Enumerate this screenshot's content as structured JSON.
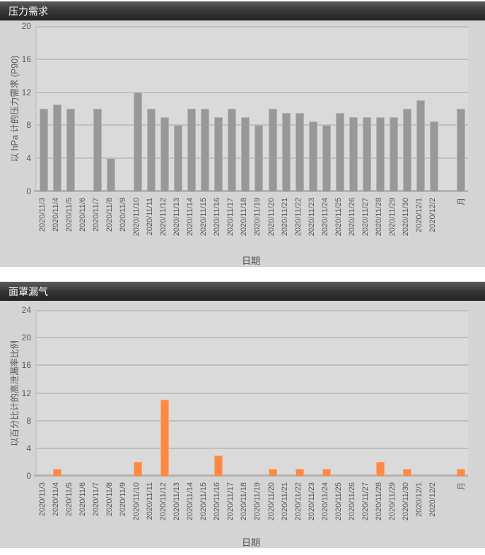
{
  "chart_data": [
    {
      "type": "bar",
      "title": "压力需求",
      "ylabel": "以 hPa 计的压力需求  (P90)",
      "xlabel": "日期",
      "ylim": [
        0,
        20
      ],
      "yticks": [
        0,
        4,
        8,
        12,
        16,
        20
      ],
      "grid": true,
      "legend": "none",
      "bar_color": "#989898",
      "categories": [
        "2020/11/3",
        "2020/11/4",
        "2020/11/5",
        "2020/11/6",
        "2020/11/7",
        "2020/11/8",
        "2020/11/9",
        "2020/11/10",
        "2020/11/11",
        "2020/11/12",
        "2020/11/13",
        "2020/11/14",
        "2020/11/15",
        "2020/11/16",
        "2020/11/17",
        "2020/11/18",
        "2020/11/19",
        "2020/11/20",
        "2020/11/21",
        "2020/11/22",
        "2020/11/23",
        "2020/11/24",
        "2020/11/25",
        "2020/11/26",
        "2020/11/27",
        "2020/11/28",
        "2020/11/29",
        "2020/11/30",
        "2020/12/1",
        "2020/12/2",
        "",
        "月"
      ],
      "values": [
        10,
        10.5,
        10,
        0,
        10,
        4,
        0,
        12,
        10,
        9,
        8,
        10,
        10,
        9,
        10,
        9,
        8,
        10,
        9.5,
        9.5,
        8.5,
        8,
        9.5,
        9,
        9,
        9,
        9,
        10,
        11,
        8.5,
        null,
        10
      ]
    },
    {
      "type": "bar",
      "title": "面罩漏气",
      "ylabel": "以百分比计的高泄漏率比例",
      "xlabel": "日期",
      "ylim": [
        0,
        24
      ],
      "yticks": [
        0,
        4,
        8,
        12,
        16,
        20,
        24
      ],
      "grid": true,
      "legend": "none",
      "bar_color": "#fb8a45",
      "categories": [
        "2020/11/3",
        "2020/11/4",
        "2020/11/5",
        "2020/11/6",
        "2020/11/7",
        "2020/11/8",
        "2020/11/9",
        "2020/11/10",
        "2020/11/11",
        "2020/11/12",
        "2020/11/13",
        "2020/11/14",
        "2020/11/15",
        "2020/11/16",
        "2020/11/17",
        "2020/11/18",
        "2020/11/19",
        "2020/11/20",
        "2020/11/21",
        "2020/11/22",
        "2020/11/23",
        "2020/11/24",
        "2020/11/25",
        "2020/11/26",
        "2020/11/27",
        "2020/11/28",
        "2020/11/29",
        "2020/11/30",
        "2020/12/1",
        "2020/12/2",
        "",
        "月"
      ],
      "values": [
        0,
        1,
        0,
        0,
        0,
        0,
        0,
        2,
        0,
        11,
        0,
        0,
        0,
        3,
        0,
        0,
        0,
        1,
        0,
        1,
        0,
        1,
        0,
        0,
        0,
        2,
        0,
        1,
        0,
        0,
        null,
        1
      ]
    }
  ],
  "colors": {
    "pressure_bar": "#989898",
    "leak_bar": "#fb8a45",
    "panel_bg": "#d4d4d4",
    "plot_bg": "#dadada",
    "gridline": "#bfbfbf",
    "titlebar_text": "#ffffff",
    "tick_text": "#595959"
  }
}
